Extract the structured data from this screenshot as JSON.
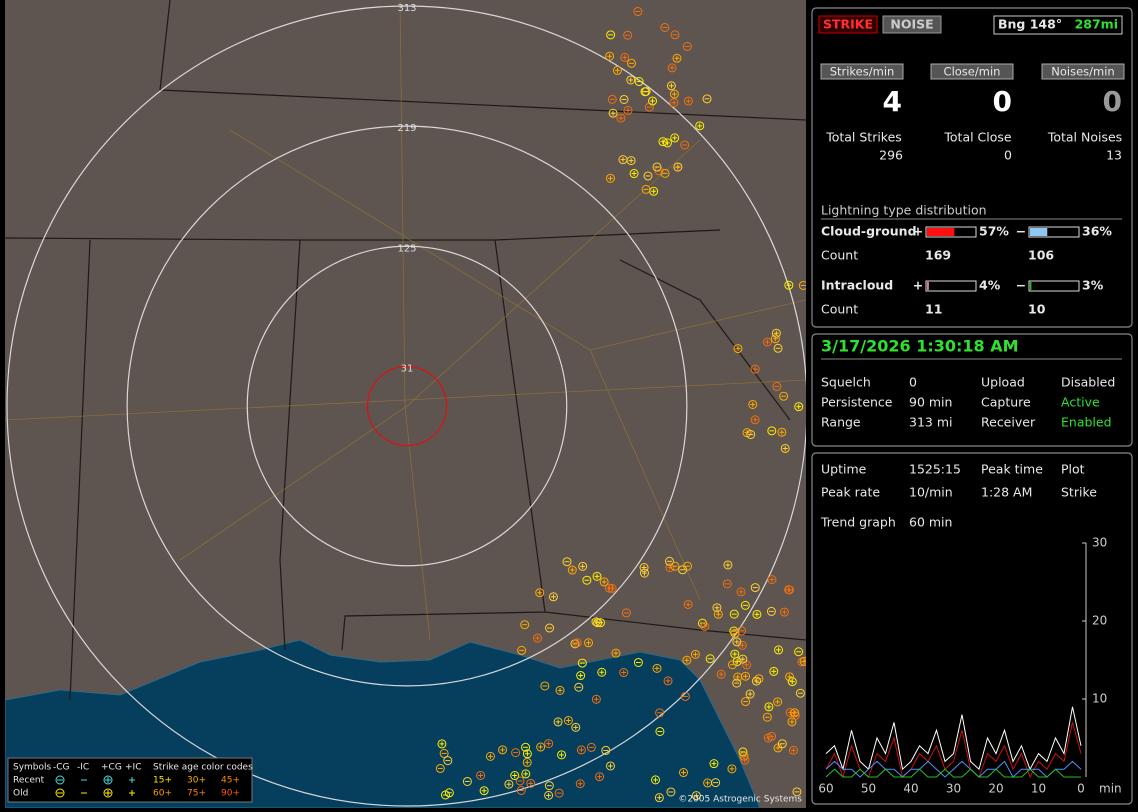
{
  "map": {
    "range_rings": [
      313,
      219,
      125,
      31
    ],
    "copyright": "©2005 Astrogenic Systems",
    "legend": {
      "symbols_label": "Symbols",
      "columns": [
        "-CG",
        "-IC",
        "+CG",
        "+IC"
      ],
      "age_label": "Strike age color codes",
      "rows": [
        {
          "label": "Recent",
          "ages": [
            "15+",
            "30+",
            "45+"
          ]
        },
        {
          "label": "Old",
          "ages": [
            "60+",
            "75+",
            "90+"
          ]
        }
      ]
    }
  },
  "status": {
    "strike_button": "STRIKE",
    "noise_button": "NOISE",
    "bearing": "Bng 148°",
    "distance": "287mi"
  },
  "rates": [
    {
      "header": "Strikes/min",
      "value": 4,
      "total_label": "Total Strikes",
      "total": 296
    },
    {
      "header": "Close/min",
      "value": 0,
      "total_label": "Total Close",
      "total": 0
    },
    {
      "header": "Noises/min",
      "value": 0,
      "total_label": "Total Noises",
      "total": 13
    }
  ],
  "distribution": {
    "title": "Lightning type distribution",
    "count_label": "Count",
    "types": [
      {
        "name": "Cloud-ground",
        "positive": {
          "sign": "+",
          "percent": {
            "value": 57,
            "label": "57%"
          },
          "count": 169,
          "color": "#ff1010"
        },
        "negative": {
          "sign": "−",
          "percent": {
            "value": 36,
            "label": "36%"
          },
          "count": 106,
          "color": "#8ec8f0"
        }
      },
      {
        "name": "Intracloud",
        "positive": {
          "sign": "+",
          "percent": {
            "value": 4,
            "label": "4%"
          },
          "count": 11,
          "color": "#e070b0"
        },
        "negative": {
          "sign": "−",
          "percent": {
            "value": 3,
            "label": "3%"
          },
          "count": 10,
          "color": "#20c020"
        }
      }
    ]
  },
  "settings": {
    "datetime": "3/17/2026 1:30:18 AM",
    "rows": [
      [
        "Squelch",
        0,
        "Upload",
        "Disabled"
      ],
      [
        "Persistence",
        "90 min",
        "Capture",
        "Active"
      ],
      [
        "Range",
        "313 mi",
        "Receiver",
        "Enabled"
      ]
    ]
  },
  "stats": {
    "rows": [
      [
        "Uptime",
        "1525:15",
        "Peak time",
        "Plot"
      ],
      [
        "Peak rate",
        "10/min",
        "1:28 AM",
        "Strike"
      ]
    ],
    "trend_label": "Trend graph",
    "trend_span": "60 min"
  },
  "trend_chart": {
    "type": "line",
    "x": [
      60,
      58,
      56,
      54,
      52,
      50,
      48,
      46,
      44,
      42,
      40,
      38,
      36,
      34,
      32,
      30,
      28,
      26,
      24,
      22,
      20,
      18,
      16,
      14,
      12,
      10,
      8,
      6,
      4,
      2,
      0
    ],
    "xlim": [
      60,
      0
    ],
    "ylim": [
      0,
      30
    ],
    "yticks": [
      10,
      20,
      30
    ],
    "xticks": [
      60,
      50,
      40,
      30,
      20,
      10,
      0
    ],
    "x_unit": "min",
    "series": [
      {
        "color": "#ffffff",
        "values": [
          3,
          4,
          1,
          6,
          2,
          1,
          5,
          3,
          7,
          1,
          2,
          4,
          3,
          6,
          2,
          3,
          8,
          2,
          1,
          5,
          3,
          6,
          2,
          4,
          1,
          3,
          2,
          5,
          3,
          9,
          4
        ]
      },
      {
        "color": "#cc1010",
        "values": [
          1,
          3,
          0,
          4,
          1,
          0,
          3,
          2,
          5,
          0,
          1,
          3,
          2,
          4,
          1,
          2,
          6,
          1,
          0,
          3,
          2,
          4,
          1,
          3,
          0,
          2,
          1,
          3,
          2,
          7,
          3
        ]
      },
      {
        "color": "#5090ff",
        "values": [
          1,
          2,
          1,
          1,
          0,
          1,
          2,
          1,
          1,
          0,
          1,
          1,
          2,
          1,
          0,
          1,
          2,
          1,
          0,
          1,
          1,
          2,
          0,
          1,
          1,
          1,
          0,
          1,
          1,
          2,
          1
        ]
      },
      {
        "color": "#20c020",
        "values": [
          0,
          1,
          0,
          0,
          1,
          0,
          0,
          1,
          0,
          0,
          0,
          1,
          0,
          0,
          1,
          0,
          0,
          1,
          0,
          0,
          1,
          0,
          0,
          0,
          1,
          0,
          0,
          1,
          0,
          0,
          0
        ]
      }
    ]
  }
}
